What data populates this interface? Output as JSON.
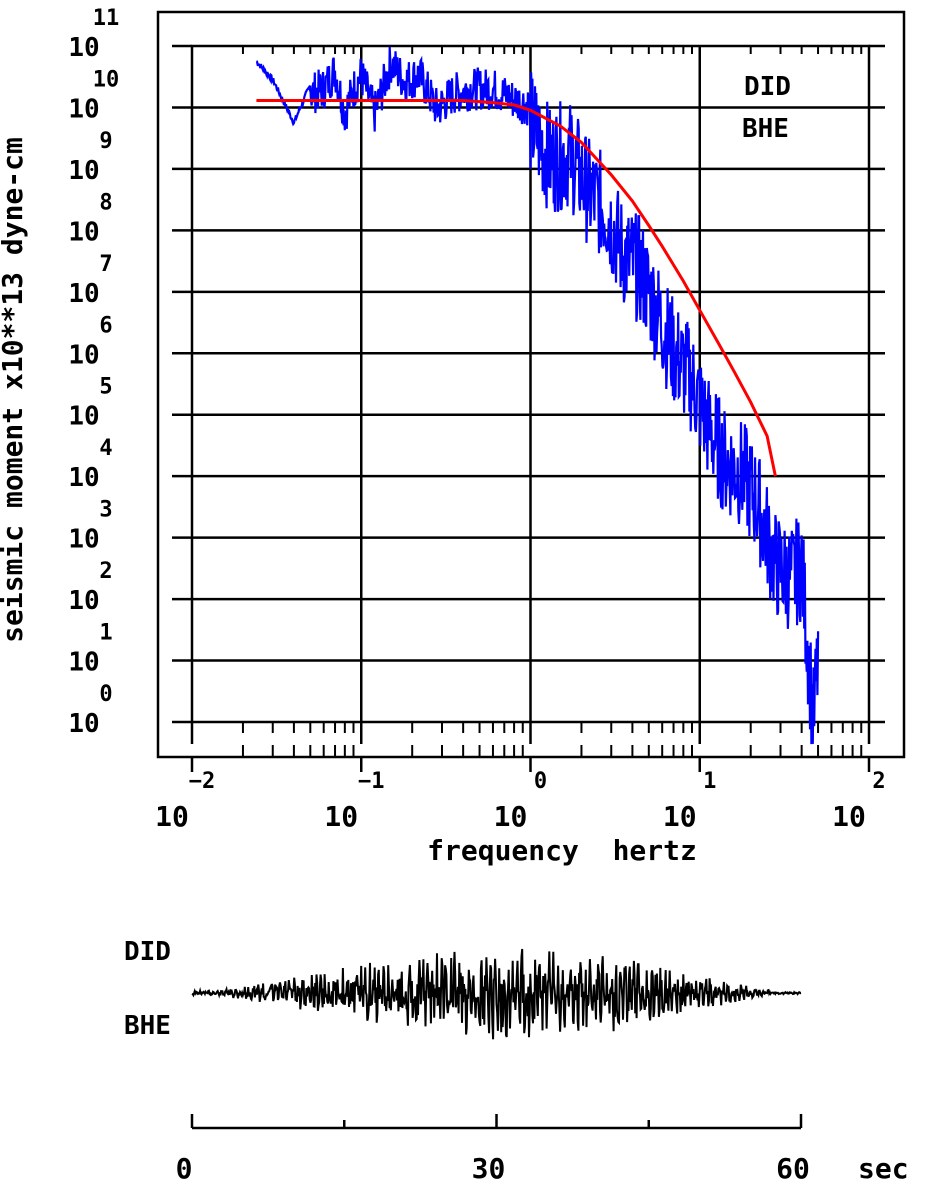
{
  "chart_data": [
    {
      "type": "line",
      "title": "",
      "xlabel": "frequency  hertz",
      "ylabel": "seismic moment x10**13 dyne-cm",
      "x_scale": "log",
      "y_scale": "log",
      "xlim": [
        0.01,
        100
      ],
      "ylim": [
        1,
        100000000000
      ],
      "grid": true,
      "x_ticks": [
        {
          "base": "10",
          "exp": "−2"
        },
        {
          "base": "10",
          "exp": "−1"
        },
        {
          "base": "10",
          "exp": "0"
        },
        {
          "base": "10",
          "exp": "1"
        },
        {
          "base": "10",
          "exp": "2"
        }
      ],
      "y_ticks": [
        {
          "base": "10",
          "exp": "0"
        },
        {
          "base": "10",
          "exp": "1"
        },
        {
          "base": "10",
          "exp": "2"
        },
        {
          "base": "10",
          "exp": "3"
        },
        {
          "base": "10",
          "exp": "4"
        },
        {
          "base": "10",
          "exp": "5"
        },
        {
          "base": "10",
          "exp": "6"
        },
        {
          "base": "10",
          "exp": "7"
        },
        {
          "base": "10",
          "exp": "8"
        },
        {
          "base": "10",
          "exp": "9"
        },
        {
          "base": "10",
          "exp": "10"
        },
        {
          "base": "10",
          "exp": "11"
        }
      ],
      "annotations": [
        "DID",
        "BHE"
      ],
      "series": [
        {
          "color": "#0000ff",
          "style": "spectrum",
          "x": [
            0.024,
            0.03,
            0.04,
            0.05,
            0.06,
            0.07,
            0.08,
            0.09,
            0.1,
            0.12,
            0.15,
            0.18,
            0.22,
            0.28,
            0.35,
            0.45,
            0.6,
            0.8,
            1.0,
            1.3,
            1.7,
            2.2,
            2.8,
            3.5,
            4.5,
            5.5,
            7,
            9,
            11,
            14,
            18,
            22,
            28,
            35,
            40,
            44,
            47,
            50
          ],
          "y": [
            60000000000.0,
            30000000000.0,
            6000000000.0,
            25000000000.0,
            30000000000.0,
            60000000000.0,
            12000000000.0,
            30000000000.0,
            50000000000.0,
            12000000000.0,
            80000000000.0,
            40000000000.0,
            50000000000.0,
            14000000000.0,
            25000000000.0,
            30000000000.0,
            30000000000.0,
            20000000000.0,
            16000000000.0,
            4000000000.0,
            5000000000.0,
            1200000000.0,
            600000000.0,
            120000000.0,
            60000000.0,
            15000000.0,
            3000000.0,
            1000000.0,
            200000.0,
            50000.0,
            30000.0,
            10000.0,
            1000.0,
            600.0,
            1000.0,
            30.0,
            3.0,
            30.0
          ]
        },
        {
          "color": "#ff0000",
          "style": "model",
          "x": [
            0.024,
            0.05,
            0.1,
            0.2,
            0.4,
            0.6,
            0.8,
            1.0,
            1.5,
            2,
            3,
            4,
            5,
            6,
            8,
            10,
            13,
            16,
            20,
            25,
            28
          ],
          "y": [
            13000000000.0,
            13000000000.0,
            13000000000.0,
            13000000000.0,
            13000000000.0,
            12000000000.0,
            11000000000.0,
            9000000000.0,
            5000000000.0,
            2700000000.0,
            800000000.0,
            300000000.0,
            120000000.0,
            55000000.0,
            15000000.0,
            5000000.0,
            1400000.0,
            500000.0,
            160000.0,
            45000.0,
            10000.0
          ]
        }
      ]
    },
    {
      "type": "line",
      "title": "",
      "annotations": [
        "DID",
        "BHE"
      ],
      "xlim": [
        0,
        60
      ],
      "x_unit": "sec",
      "x_ticks": [
        "0",
        "30",
        "60"
      ],
      "series": [
        {
          "color": "#000000",
          "style": "seismogram",
          "x": [
            0,
            60
          ],
          "y": [
            0,
            0
          ]
        }
      ]
    }
  ]
}
